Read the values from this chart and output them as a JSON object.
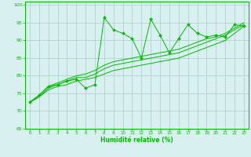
{
  "xlabel": "Humidité relative (%)",
  "xlim": [
    -0.5,
    23.5
  ],
  "ylim": [
    65,
    101
  ],
  "xticks": [
    0,
    1,
    2,
    3,
    4,
    5,
    6,
    7,
    8,
    9,
    10,
    11,
    12,
    13,
    14,
    15,
    16,
    17,
    18,
    19,
    20,
    21,
    22,
    23
  ],
  "yticks": [
    65,
    70,
    75,
    80,
    85,
    90,
    95,
    100
  ],
  "line_color": "#00bb00",
  "background_color": "#d8f0f0",
  "grid_color": "#aacccc",
  "spiky_series": [
    72.5,
    74.5,
    77.0,
    77.5,
    78.5,
    79.0,
    76.5,
    77.5,
    96.5,
    93.0,
    92.0,
    90.5,
    85.0,
    96.0,
    91.5,
    86.5,
    90.5,
    94.5,
    92.0,
    91.0,
    91.5,
    91.0,
    94.5,
    94.0
  ],
  "smooth_series": [
    [
      72.5,
      74.0,
      76.0,
      77.0,
      77.5,
      78.5,
      79.0,
      79.5,
      80.5,
      81.5,
      82.0,
      82.5,
      83.0,
      83.5,
      84.0,
      84.5,
      85.0,
      86.0,
      87.0,
      88.0,
      89.0,
      90.0,
      92.0,
      94.0
    ],
    [
      72.5,
      74.0,
      76.5,
      77.5,
      78.5,
      79.5,
      79.5,
      80.5,
      82.0,
      83.0,
      83.5,
      84.0,
      84.5,
      85.0,
      85.5,
      86.0,
      86.5,
      87.5,
      88.5,
      89.5,
      90.5,
      91.5,
      93.0,
      94.5
    ],
    [
      72.5,
      74.5,
      77.0,
      78.0,
      79.0,
      80.0,
      80.5,
      81.5,
      83.0,
      84.0,
      84.5,
      85.0,
      85.5,
      86.0,
      86.5,
      87.0,
      87.5,
      88.5,
      89.5,
      90.5,
      91.0,
      92.0,
      93.5,
      95.0
    ]
  ]
}
